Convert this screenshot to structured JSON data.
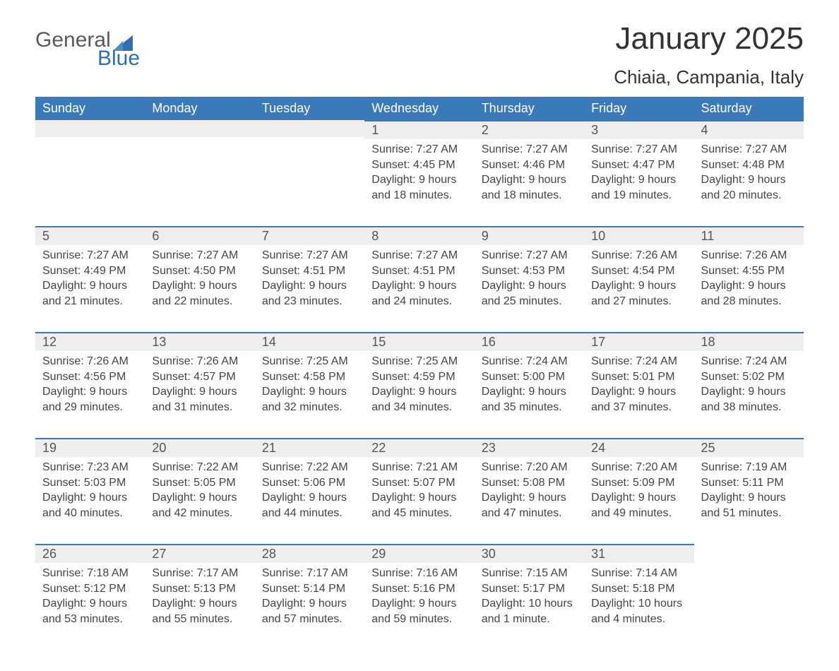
{
  "logo": {
    "word1": "General",
    "word2": "Blue",
    "accent_color": "#2f6fb0"
  },
  "title": "January 2025",
  "subtitle": "Chiaia, Campania, Italy",
  "colors": {
    "header_bg": "#3a7ab8",
    "header_text": "#ffffff",
    "row_border": "#3a7ab8",
    "daynum_bg": "#eeeeee",
    "text": "#333333"
  },
  "dayNames": [
    "Sunday",
    "Monday",
    "Tuesday",
    "Wednesday",
    "Thursday",
    "Friday",
    "Saturday"
  ],
  "weeks": [
    [
      null,
      null,
      null,
      {
        "n": "1",
        "sr": "7:27 AM",
        "ss": "4:45 PM",
        "dl": "9 hours and 18 minutes."
      },
      {
        "n": "2",
        "sr": "7:27 AM",
        "ss": "4:46 PM",
        "dl": "9 hours and 18 minutes."
      },
      {
        "n": "3",
        "sr": "7:27 AM",
        "ss": "4:47 PM",
        "dl": "9 hours and 19 minutes."
      },
      {
        "n": "4",
        "sr": "7:27 AM",
        "ss": "4:48 PM",
        "dl": "9 hours and 20 minutes."
      }
    ],
    [
      {
        "n": "5",
        "sr": "7:27 AM",
        "ss": "4:49 PM",
        "dl": "9 hours and 21 minutes."
      },
      {
        "n": "6",
        "sr": "7:27 AM",
        "ss": "4:50 PM",
        "dl": "9 hours and 22 minutes."
      },
      {
        "n": "7",
        "sr": "7:27 AM",
        "ss": "4:51 PM",
        "dl": "9 hours and 23 minutes."
      },
      {
        "n": "8",
        "sr": "7:27 AM",
        "ss": "4:51 PM",
        "dl": "9 hours and 24 minutes."
      },
      {
        "n": "9",
        "sr": "7:27 AM",
        "ss": "4:53 PM",
        "dl": "9 hours and 25 minutes."
      },
      {
        "n": "10",
        "sr": "7:26 AM",
        "ss": "4:54 PM",
        "dl": "9 hours and 27 minutes."
      },
      {
        "n": "11",
        "sr": "7:26 AM",
        "ss": "4:55 PM",
        "dl": "9 hours and 28 minutes."
      }
    ],
    [
      {
        "n": "12",
        "sr": "7:26 AM",
        "ss": "4:56 PM",
        "dl": "9 hours and 29 minutes."
      },
      {
        "n": "13",
        "sr": "7:26 AM",
        "ss": "4:57 PM",
        "dl": "9 hours and 31 minutes."
      },
      {
        "n": "14",
        "sr": "7:25 AM",
        "ss": "4:58 PM",
        "dl": "9 hours and 32 minutes."
      },
      {
        "n": "15",
        "sr": "7:25 AM",
        "ss": "4:59 PM",
        "dl": "9 hours and 34 minutes."
      },
      {
        "n": "16",
        "sr": "7:24 AM",
        "ss": "5:00 PM",
        "dl": "9 hours and 35 minutes."
      },
      {
        "n": "17",
        "sr": "7:24 AM",
        "ss": "5:01 PM",
        "dl": "9 hours and 37 minutes."
      },
      {
        "n": "18",
        "sr": "7:24 AM",
        "ss": "5:02 PM",
        "dl": "9 hours and 38 minutes."
      }
    ],
    [
      {
        "n": "19",
        "sr": "7:23 AM",
        "ss": "5:03 PM",
        "dl": "9 hours and 40 minutes."
      },
      {
        "n": "20",
        "sr": "7:22 AM",
        "ss": "5:05 PM",
        "dl": "9 hours and 42 minutes."
      },
      {
        "n": "21",
        "sr": "7:22 AM",
        "ss": "5:06 PM",
        "dl": "9 hours and 44 minutes."
      },
      {
        "n": "22",
        "sr": "7:21 AM",
        "ss": "5:07 PM",
        "dl": "9 hours and 45 minutes."
      },
      {
        "n": "23",
        "sr": "7:20 AM",
        "ss": "5:08 PM",
        "dl": "9 hours and 47 minutes."
      },
      {
        "n": "24",
        "sr": "7:20 AM",
        "ss": "5:09 PM",
        "dl": "9 hours and 49 minutes."
      },
      {
        "n": "25",
        "sr": "7:19 AM",
        "ss": "5:11 PM",
        "dl": "9 hours and 51 minutes."
      }
    ],
    [
      {
        "n": "26",
        "sr": "7:18 AM",
        "ss": "5:12 PM",
        "dl": "9 hours and 53 minutes."
      },
      {
        "n": "27",
        "sr": "7:17 AM",
        "ss": "5:13 PM",
        "dl": "9 hours and 55 minutes."
      },
      {
        "n": "28",
        "sr": "7:17 AM",
        "ss": "5:14 PM",
        "dl": "9 hours and 57 minutes."
      },
      {
        "n": "29",
        "sr": "7:16 AM",
        "ss": "5:16 PM",
        "dl": "9 hours and 59 minutes."
      },
      {
        "n": "30",
        "sr": "7:15 AM",
        "ss": "5:17 PM",
        "dl": "10 hours and 1 minute."
      },
      {
        "n": "31",
        "sr": "7:14 AM",
        "ss": "5:18 PM",
        "dl": "10 hours and 4 minutes."
      },
      null
    ]
  ],
  "labels": {
    "sunrise": "Sunrise: ",
    "sunset": "Sunset: ",
    "daylight": "Daylight: "
  }
}
